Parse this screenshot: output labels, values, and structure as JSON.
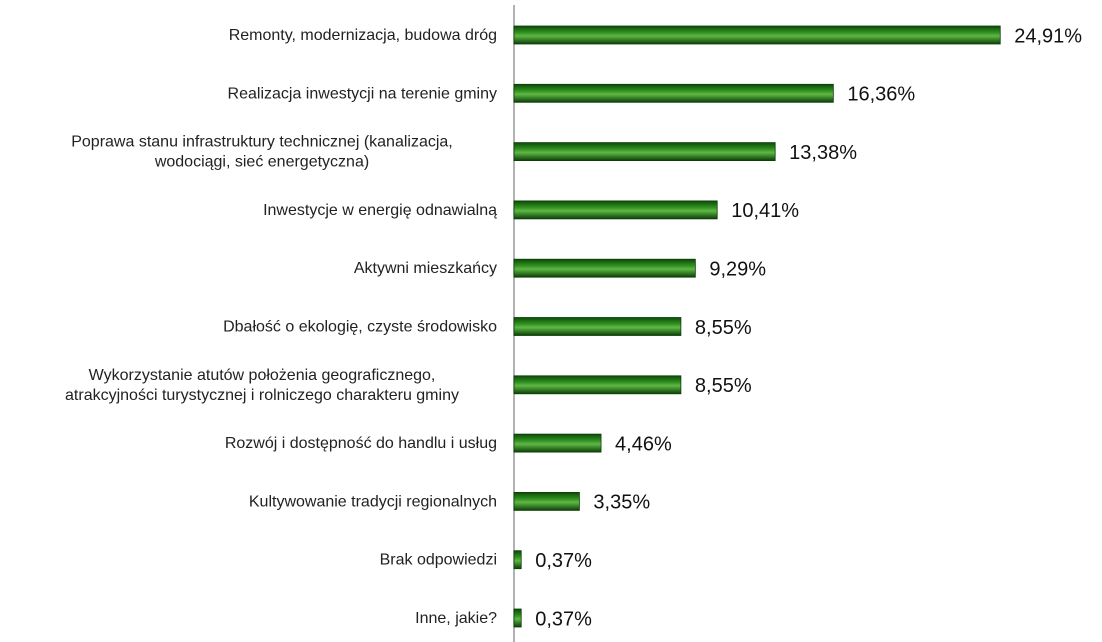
{
  "chart_data": {
    "type": "bar",
    "orientation": "horizontal",
    "categories": [
      "Remonty, modernizacja, budowa dróg",
      "Realizacja inwestycji na terenie gminy",
      "Poprawa stanu infrastruktury technicznej (kanalizacja,\nwodociągi, sieć energetyczna)",
      "Inwestycje w energię odnawialną",
      "Aktywni mieszkańcy",
      "Dbałość o ekologię, czyste środowisko",
      "Wykorzystanie atutów położenia geograficznego,\natrakcyjności turystycznej i rolniczego charakteru gminy",
      "Rozwój i dostępność do handlu i usług",
      "Kultywowanie tradycji regionalnych",
      "Brak odpowiedzi",
      "Inne, jakie?"
    ],
    "values": [
      24.91,
      16.36,
      13.38,
      10.41,
      9.29,
      8.55,
      8.55,
      4.46,
      3.35,
      0.37,
      0.37
    ],
    "value_labels": [
      "24,91%",
      "16,36%",
      "13,38%",
      "10,41%",
      "9,29%",
      "8,55%",
      "8,55%",
      "4,46%",
      "3,35%",
      "0,37%",
      "0,37%"
    ],
    "color": "#2f8f1f",
    "xlim": [
      0,
      25
    ]
  }
}
